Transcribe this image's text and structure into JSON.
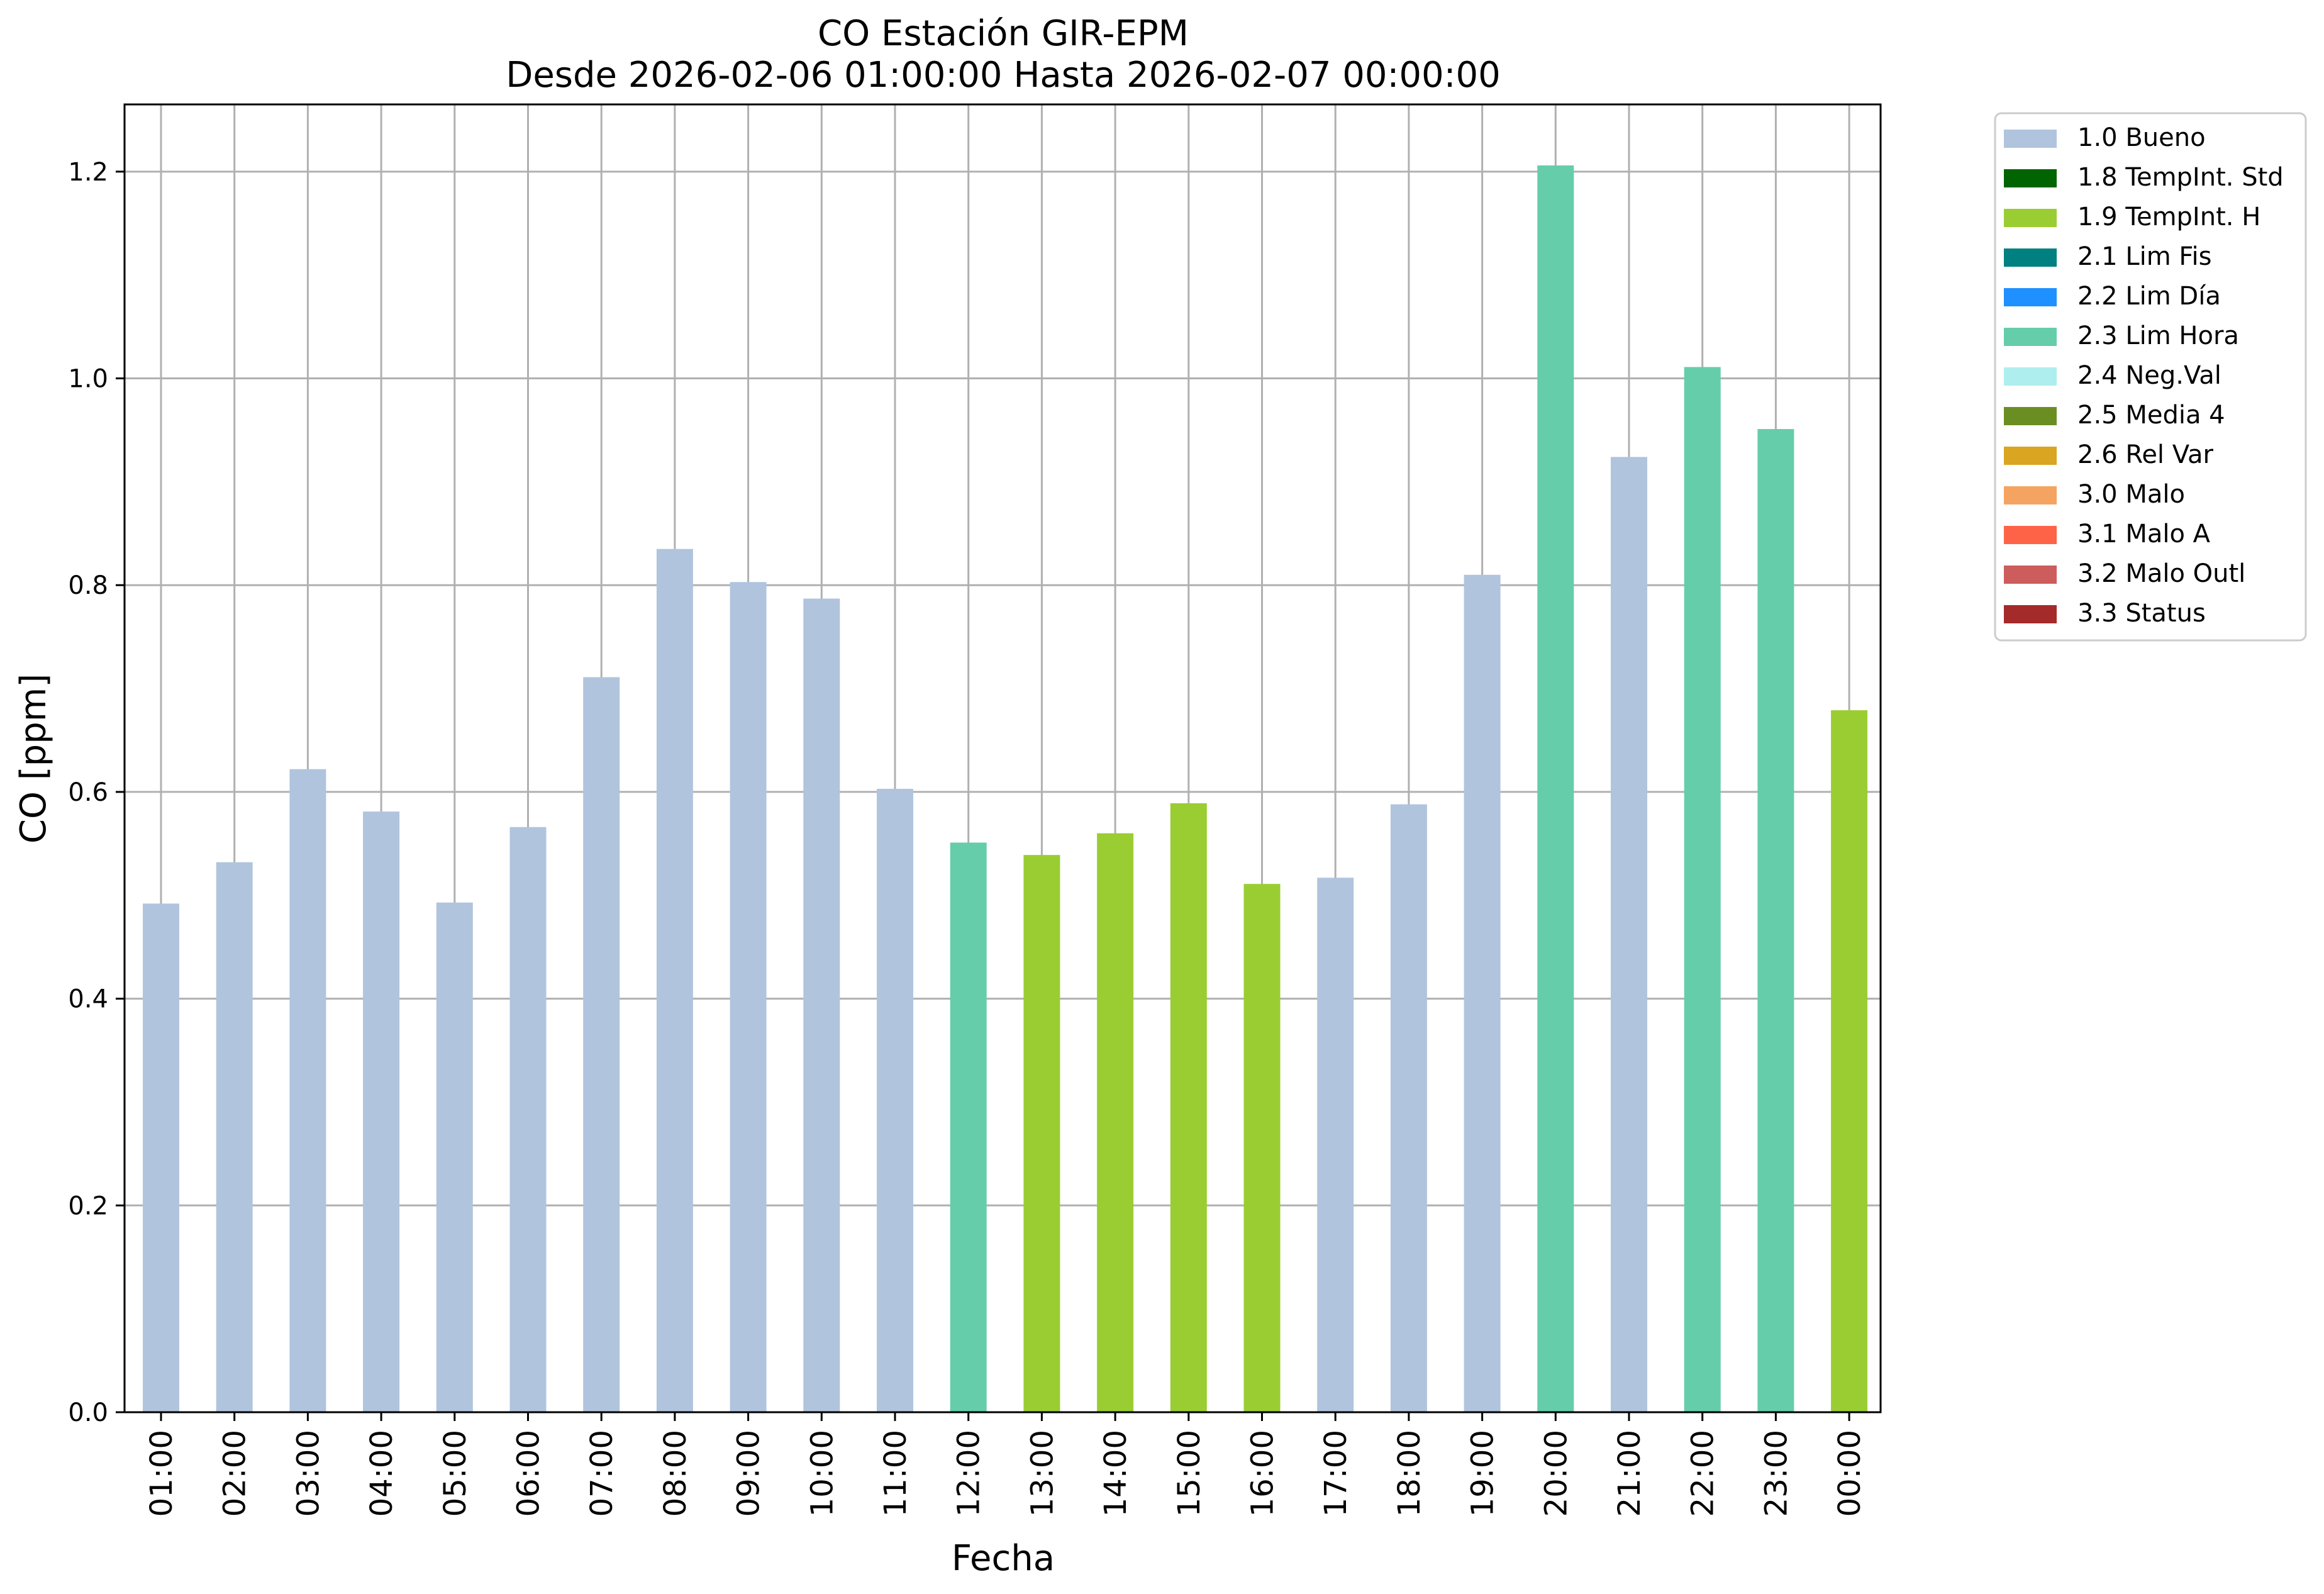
{
  "chart_data": {
    "type": "bar",
    "title": "CO Estación GIR-EPM",
    "subtitle": "Desde 2026-02-06 01:00:00 Hasta 2026-02-07 00:00:00",
    "xlabel": "Fecha",
    "ylabel": "CO [ppm]",
    "ylim": [
      0,
      1.265
    ],
    "yticks": [
      "0.0",
      "0.2",
      "0.4",
      "0.6",
      "0.8",
      "1.0",
      "1.2"
    ],
    "grid": true,
    "legend_position": "outside-top-right",
    "categories": [
      "01:00",
      "02:00",
      "03:00",
      "04:00",
      "05:00",
      "06:00",
      "07:00",
      "08:00",
      "09:00",
      "10:00",
      "11:00",
      "12:00",
      "13:00",
      "14:00",
      "15:00",
      "16:00",
      "17:00",
      "18:00",
      "19:00",
      "20:00",
      "21:00",
      "22:00",
      "23:00",
      "00:00"
    ],
    "values": [
      0.492,
      0.532,
      0.622,
      0.581,
      0.493,
      0.566,
      0.711,
      0.835,
      0.803,
      0.787,
      0.603,
      0.551,
      0.539,
      0.56,
      0.589,
      0.511,
      0.517,
      0.588,
      0.81,
      1.206,
      0.924,
      1.011,
      0.951,
      0.679
    ],
    "flags": [
      "1.0 Bueno",
      "1.0 Bueno",
      "1.0 Bueno",
      "1.0 Bueno",
      "1.0 Bueno",
      "1.0 Bueno",
      "1.0 Bueno",
      "1.0 Bueno",
      "1.0 Bueno",
      "1.0 Bueno",
      "1.0 Bueno",
      "2.3 Lim Hora",
      "1.9 TempInt. H",
      "1.9 TempInt. H",
      "1.9 TempInt. H",
      "1.9 TempInt. H",
      "1.0 Bueno",
      "1.0 Bueno",
      "1.0 Bueno",
      "2.3 Lim Hora",
      "1.0 Bueno",
      "2.3 Lim Hora",
      "2.3 Lim Hora",
      "1.9 TempInt. H"
    ],
    "legend": [
      {
        "name": "1.0 Bueno",
        "color": "#b0c4de"
      },
      {
        "name": "1.8 TempInt. Std",
        "color": "#006400"
      },
      {
        "name": "1.9 TempInt. H",
        "color": "#9acd32"
      },
      {
        "name": "2.1 Lim Fis",
        "color": "#008080"
      },
      {
        "name": "2.2 Lim Día",
        "color": "#1e90ff"
      },
      {
        "name": "2.3 Lim Hora",
        "color": "#66cdaa"
      },
      {
        "name": "2.4 Neg.Val",
        "color": "#afeeee"
      },
      {
        "name": "2.5 Media 4",
        "color": "#6b8e23"
      },
      {
        "name": "2.6 Rel Var",
        "color": "#daa520"
      },
      {
        "name": "3.0 Malo",
        "color": "#f4a460"
      },
      {
        "name": "3.1 Malo A",
        "color": "#ff6347"
      },
      {
        "name": "3.2 Malo Outl",
        "color": "#cd5c5c"
      },
      {
        "name": "3.3 Status",
        "color": "#a52a2a"
      }
    ]
  }
}
